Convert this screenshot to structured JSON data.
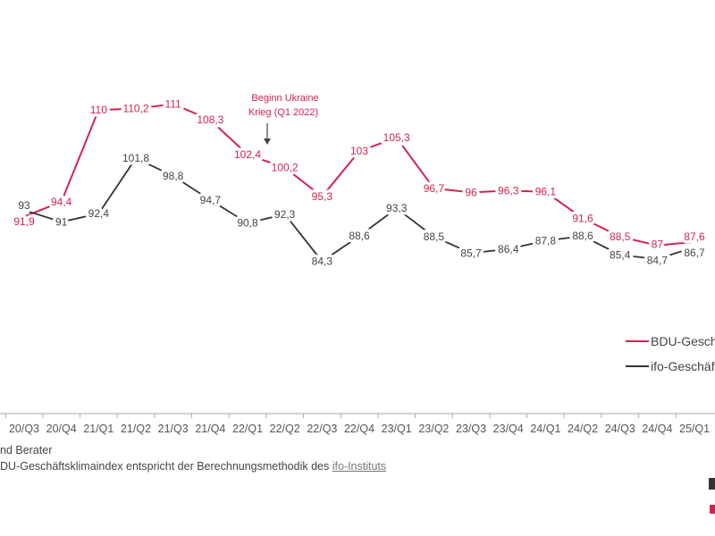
{
  "chart_data": {
    "type": "line",
    "categories": [
      "20/Q3",
      "20/Q4",
      "21/Q1",
      "21/Q2",
      "21/Q3",
      "21/Q4",
      "22/Q1",
      "22/Q2",
      "22/Q3",
      "22/Q4",
      "23/Q1",
      "23/Q2",
      "23/Q3",
      "23/Q4",
      "24/Q1",
      "24/Q2",
      "24/Q3",
      "24/Q4",
      "25/Q1"
    ],
    "series": [
      {
        "name": "BDU-Gesch",
        "color": "#d4224f",
        "values": [
          91.9,
          94.4,
          110,
          110.2,
          111,
          108.3,
          102.4,
          100.2,
          95.3,
          103,
          105.3,
          96.7,
          96,
          96.3,
          96.1,
          91.6,
          88.5,
          87,
          87.6
        ],
        "labels": [
          "91,9",
          "94,4",
          "110",
          "110,2",
          "111",
          "108,3",
          "102,4",
          "100,2",
          "95,3",
          "103",
          "105,3",
          "96,7",
          "96",
          "96,3",
          "96,1",
          "91,6",
          "88,5",
          "87",
          "87,6"
        ]
      },
      {
        "name": "ifo-Geschäf",
        "color": "#333333",
        "values": [
          93,
          91,
          92.4,
          101.8,
          98.8,
          94.7,
          90.8,
          92.3,
          84.3,
          88.6,
          93.3,
          88.5,
          85.7,
          86.4,
          87.8,
          88.6,
          85.4,
          84.7,
          86.7
        ],
        "labels": [
          "93",
          "91",
          "92,4",
          "101,8",
          "98,8",
          "94,7",
          "90,8",
          "92,3",
          "84,3",
          "88,6",
          "93,3",
          "88,5",
          "85,7",
          "86,4",
          "87,8",
          "88,6",
          "85,4",
          "84,7",
          "86,7"
        ]
      }
    ],
    "annotation": {
      "text_line1": "Beginn Ukraine",
      "text_line2": "Krieg (Q1 2022)",
      "category": "22/Q1"
    },
    "legend_position": "right",
    "grid": false
  },
  "footer": {
    "line1": "nd Berater",
    "line2": "DU-Geschäftsklimaindex entspricht der Berechnungsmethodik des ",
    "link": "ifo-Instituts"
  },
  "legend": {
    "bdu": "BDU-Gesch",
    "ifo": "ifo-Geschäf"
  }
}
